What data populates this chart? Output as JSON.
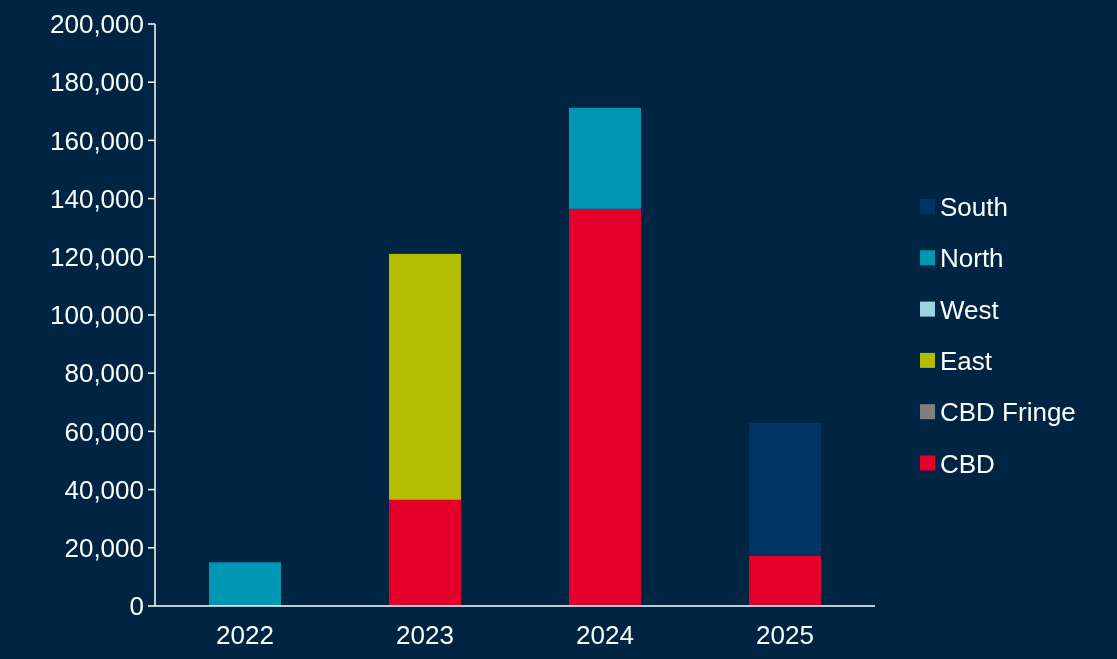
{
  "chart_data": {
    "type": "bar",
    "stacked": true,
    "categories": [
      "2022",
      "2023",
      "2024",
      "2025"
    ],
    "series": [
      {
        "name": "CBD",
        "color": "#e4002b",
        "values": [
          0,
          36500,
          136500,
          17200
        ]
      },
      {
        "name": "CBD Fringe",
        "color": "#7f7f7f",
        "values": [
          0,
          0,
          0,
          0
        ]
      },
      {
        "name": "East",
        "color": "#b5bd00",
        "values": [
          0,
          84500,
          0,
          0
        ]
      },
      {
        "name": "West",
        "color": "#99d5e0",
        "values": [
          0,
          0,
          0,
          0
        ]
      },
      {
        "name": "North",
        "color": "#0097b5",
        "values": [
          15000,
          0,
          34700,
          0
        ]
      },
      {
        "name": "South",
        "color": "#003366",
        "values": [
          0,
          0,
          0,
          45700
        ]
      }
    ],
    "ylim": [
      0,
      200000
    ],
    "yticks": [
      {
        "value": 0,
        "label": "0"
      },
      {
        "value": 20000,
        "label": "20,000"
      },
      {
        "value": 40000,
        "label": "40,000"
      },
      {
        "value": 60000,
        "label": "60,000"
      },
      {
        "value": 80000,
        "label": "80,000"
      },
      {
        "value": 100000,
        "label": "100,000"
      },
      {
        "value": 120000,
        "label": "120,000"
      },
      {
        "value": 140000,
        "label": "140,000"
      },
      {
        "value": 160000,
        "label": "160,000"
      },
      {
        "value": 180000,
        "label": "180,000"
      },
      {
        "value": 200000,
        "label": "200,000"
      }
    ],
    "grid": false,
    "legend": "right"
  }
}
